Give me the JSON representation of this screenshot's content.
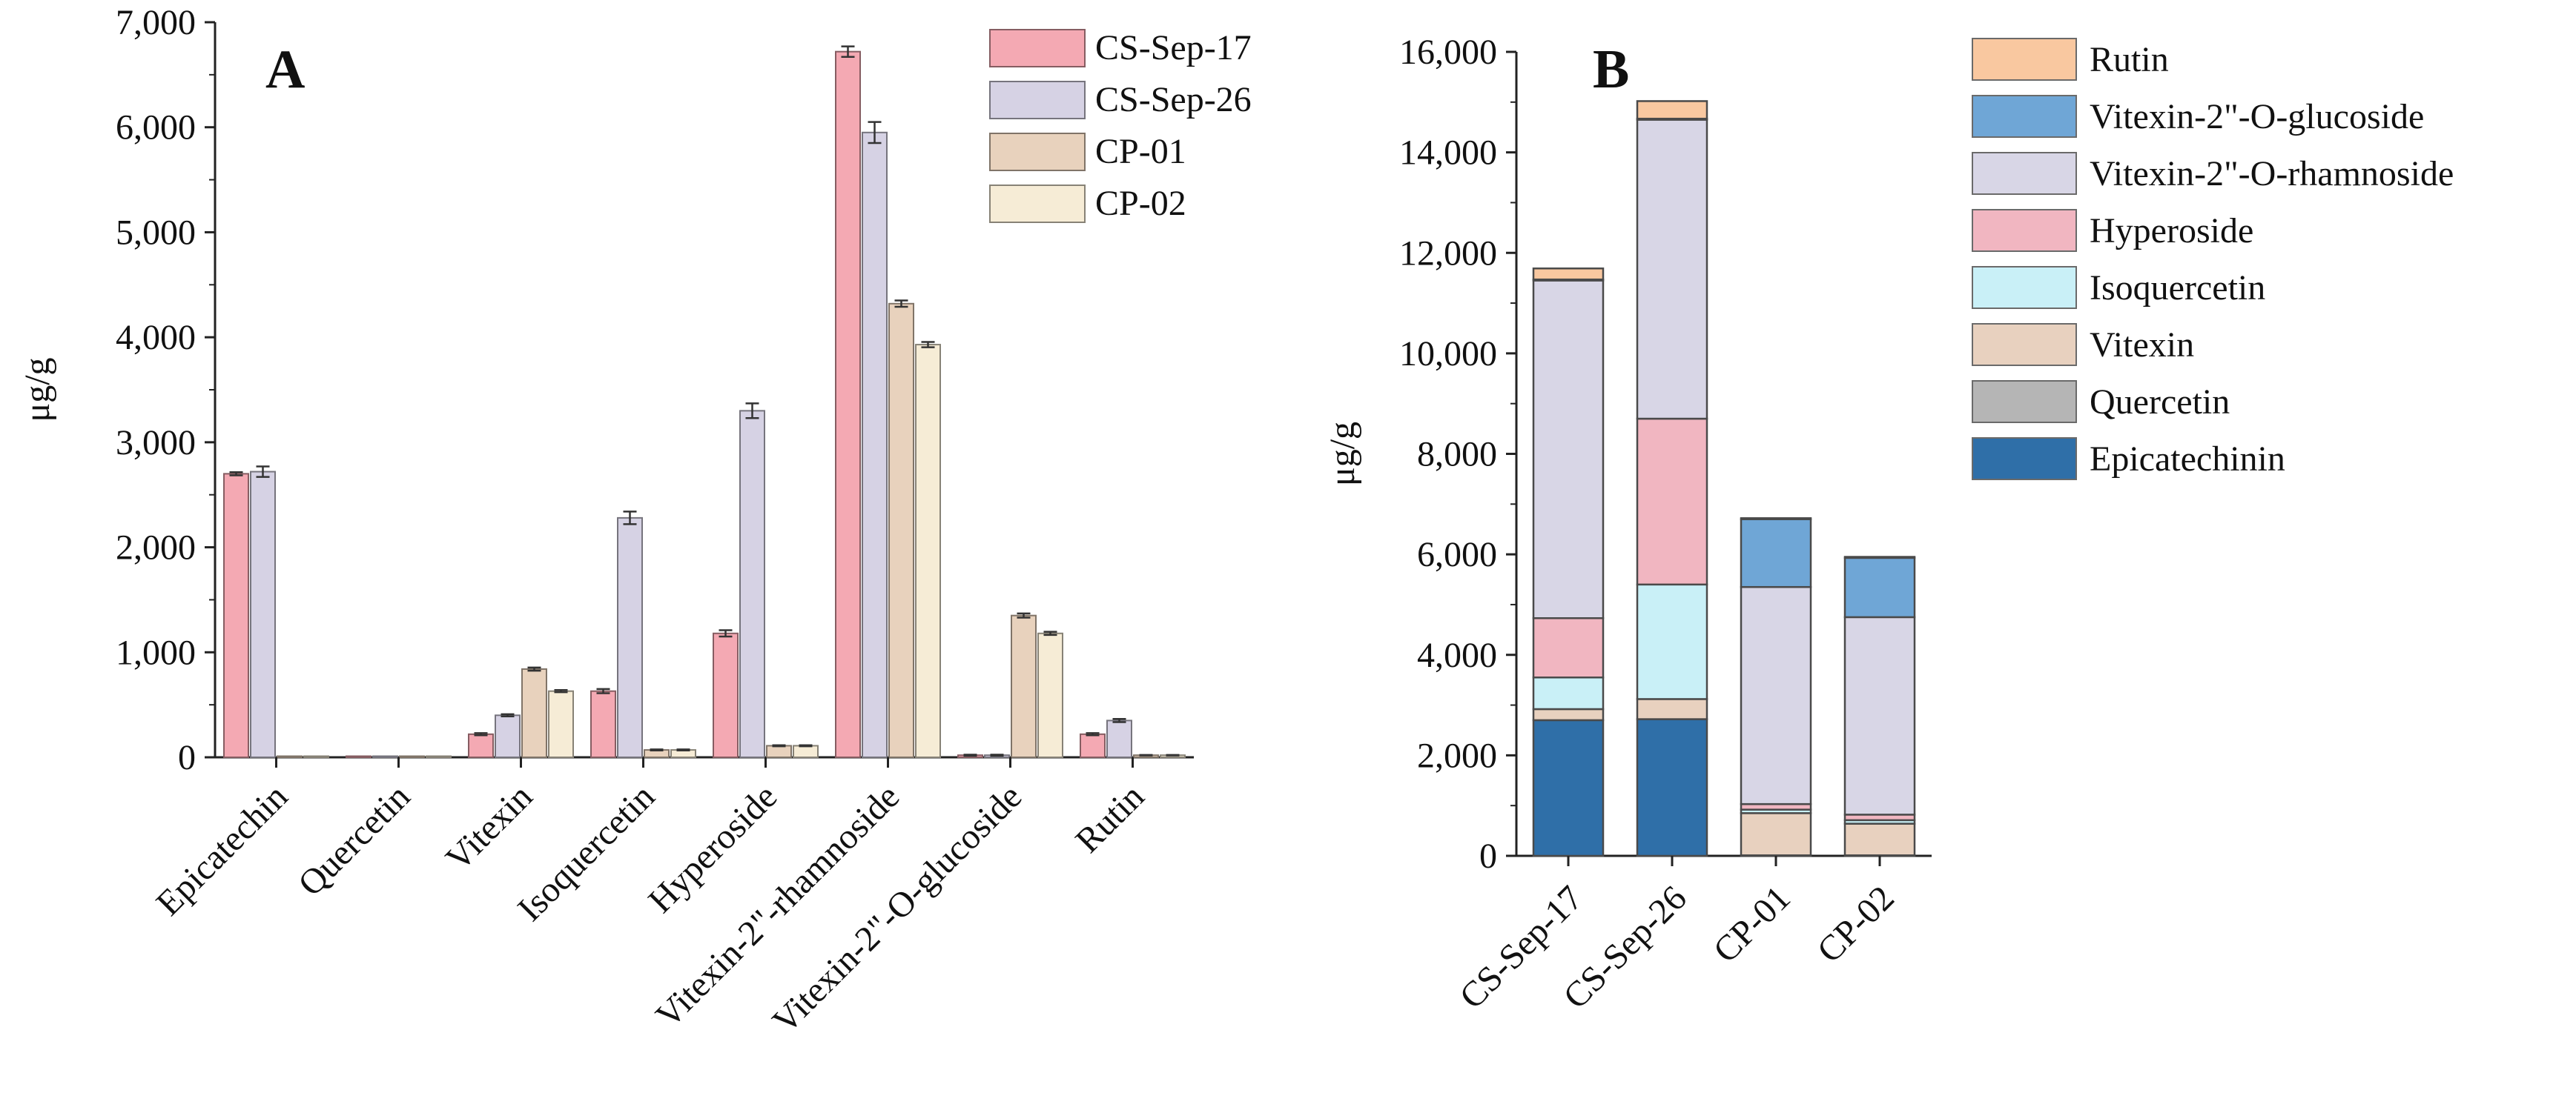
{
  "colors": {
    "CS-Sep-17": "#f4a9b3",
    "CS-Sep-26": "#d6d2e4",
    "CP-01": "#e8d2bd",
    "CP-02": "#f6ecd6",
    "Rutin": "#f9c8a0",
    "Vitexin-2\"-O-glucoside": "#6fa6d6",
    "Vitexin-2\"-O-rhamnoside": "#d8d6e6",
    "Hyperoside": "#f1b6c1",
    "Isoquercetin": "#c9f0f7",
    "Vitexin": "#e8d1bf",
    "Quercetin": "#b5b5b5",
    "Epicatechinin": "#2f6fa8"
  },
  "chart_data": [
    {
      "panel": "A",
      "type": "bar",
      "ylabel": "μg/g",
      "ylim": [
        0,
        7000
      ],
      "yticks": [
        0,
        1000,
        2000,
        3000,
        4000,
        5000,
        6000,
        7000
      ],
      "ytick_labels": [
        "0",
        "1,000",
        "2,000",
        "3,000",
        "4,000",
        "5,000",
        "6,000",
        "7,000"
      ],
      "categories": [
        "Epicatechin",
        "Quercetin",
        "Vitexin",
        "Isoquercetin",
        "Hyperoside",
        "Vitexin-2\"-rhamnoside",
        "Vitexin-2\"-O-glucoside",
        "Rutin"
      ],
      "legend_position": "top-right",
      "series": [
        {
          "name": "CS-Sep-17",
          "values": [
            2700,
            0,
            220,
            630,
            1180,
            6720,
            20,
            220
          ],
          "errors": [
            15,
            0,
            10,
            20,
            30,
            50,
            5,
            10
          ]
        },
        {
          "name": "CS-Sep-26",
          "values": [
            2720,
            0,
            400,
            2280,
            3300,
            5950,
            20,
            350
          ],
          "errors": [
            50,
            0,
            10,
            60,
            70,
            100,
            5,
            15
          ]
        },
        {
          "name": "CP-01",
          "values": [
            10,
            0,
            840,
            70,
            110,
            4320,
            1350,
            20
          ],
          "errors": [
            0,
            0,
            15,
            5,
            5,
            30,
            20,
            2
          ]
        },
        {
          "name": "CP-02",
          "values": [
            10,
            0,
            630,
            70,
            110,
            3930,
            1180,
            20
          ],
          "errors": [
            0,
            0,
            10,
            5,
            5,
            25,
            15,
            2
          ]
        }
      ]
    },
    {
      "panel": "B",
      "type": "bar",
      "stacked": true,
      "ylabel": "μg/g",
      "ylim": [
        0,
        16000
      ],
      "yticks": [
        0,
        2000,
        4000,
        6000,
        8000,
        10000,
        12000,
        14000,
        16000
      ],
      "ytick_labels": [
        "0",
        "2,000",
        "4,000",
        "6,000",
        "8,000",
        "10,000",
        "12,000",
        "14,000",
        "16,000"
      ],
      "categories": [
        "CS-Sep-17",
        "CS-Sep-26",
        "CP-01",
        "CP-02"
      ],
      "legend_position": "top-right",
      "legend_order": [
        "Rutin",
        "Vitexin-2\"-O-glucoside",
        "Vitexin-2\"-O-rhamnoside",
        "Hyperoside",
        "Isoquercetin",
        "Vitexin",
        "Quercetin",
        "Epicatechinin"
      ],
      "series": [
        {
          "name": "Epicatechinin",
          "values": [
            2700,
            2720,
            10,
            10
          ]
        },
        {
          "name": "Quercetin",
          "values": [
            0,
            0,
            0,
            0
          ]
        },
        {
          "name": "Vitexin",
          "values": [
            220,
            400,
            840,
            630
          ]
        },
        {
          "name": "Isoquercetin",
          "values": [
            630,
            2280,
            70,
            70
          ]
        },
        {
          "name": "Hyperoside",
          "values": [
            1180,
            3300,
            110,
            110
          ]
        },
        {
          "name": "Vitexin-2\"-O-rhamnoside",
          "values": [
            6720,
            5950,
            4320,
            3930
          ]
        },
        {
          "name": "Vitexin-2\"-O-glucoside",
          "values": [
            20,
            20,
            1350,
            1180
          ]
        },
        {
          "name": "Rutin",
          "values": [
            220,
            350,
            20,
            20
          ]
        }
      ]
    }
  ]
}
